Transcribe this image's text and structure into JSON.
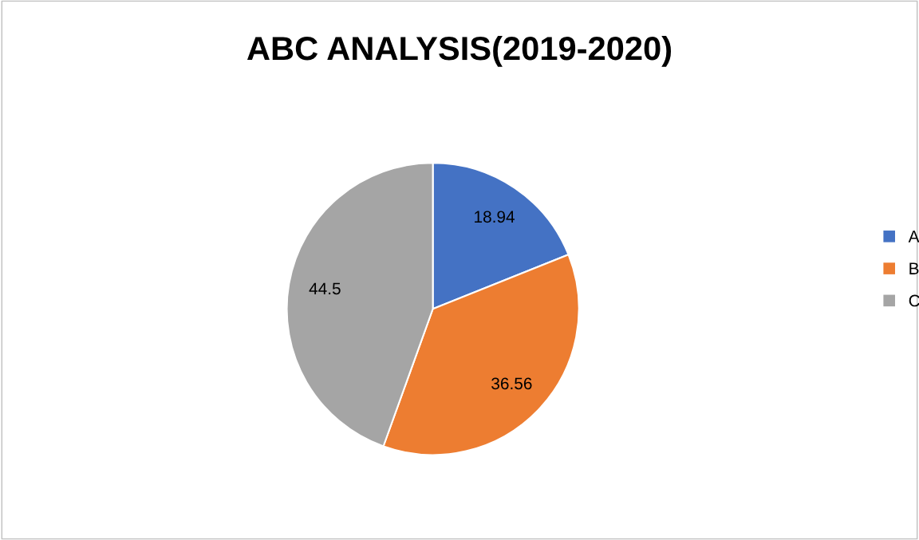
{
  "chart_data": {
    "type": "pie",
    "title": "ABC ANALYSIS(2019-2020)",
    "categories": [
      "A",
      "B",
      "C"
    ],
    "values": [
      18.94,
      36.56,
      44.5
    ],
    "colors": [
      "#4472c4",
      "#ed7d31",
      "#a5a5a5"
    ],
    "data_labels": true,
    "legend": "right"
  }
}
